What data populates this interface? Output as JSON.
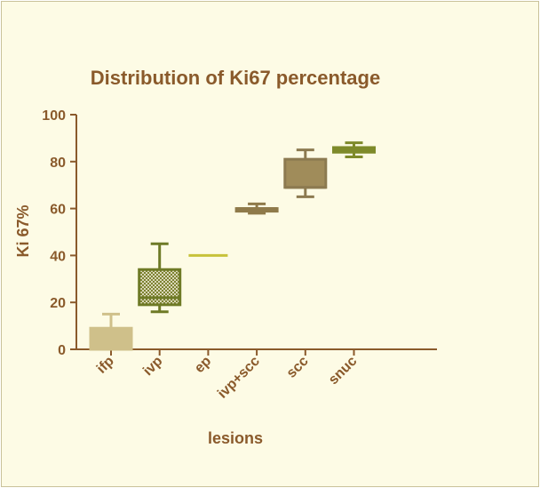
{
  "chart_data": {
    "type": "box",
    "title": "Distribution of Ki67 percentage",
    "xlabel": "lesions",
    "ylabel": "Ki 67%",
    "ylim": [
      0,
      100
    ],
    "yticks": [
      0,
      20,
      40,
      60,
      80,
      100
    ],
    "categories": [
      "ifp",
      "ivp",
      "ep",
      "ivp+scc",
      "scc",
      "snuc"
    ],
    "boxes": [
      {
        "category": "ifp",
        "min": 0,
        "q1": 0,
        "median": 0,
        "q3": 9,
        "max": 15,
        "fill": "#cfc08a",
        "stroke": "#cfc08a",
        "pattern": "solid"
      },
      {
        "category": "ivp",
        "min": 16,
        "q1": 19,
        "median": 22,
        "q3": 34,
        "max": 45,
        "fill": "#8a8f3a",
        "stroke": "#6e7a26",
        "pattern": "checker"
      },
      {
        "category": "ep",
        "min": 40,
        "q1": 40,
        "median": 40,
        "q3": 40,
        "max": 40,
        "fill": "#c7c23a",
        "stroke": "#c7c23a",
        "pattern": "line"
      },
      {
        "category": "ivp+scc",
        "min": 58,
        "q1": 59,
        "median": 60,
        "q3": 60,
        "max": 62,
        "fill": "#8f7a4a",
        "stroke": "#8f7a4a",
        "pattern": "solid"
      },
      {
        "category": "scc",
        "min": 65,
        "q1": 69,
        "median": 69,
        "q3": 81,
        "max": 85,
        "fill": "#a08c5a",
        "stroke": "#8c7a50",
        "pattern": "solid"
      },
      {
        "category": "snuc",
        "min": 82,
        "q1": 84,
        "median": 85,
        "q3": 86,
        "max": 88,
        "fill": "#7e8a2a",
        "stroke": "#7e8a2a",
        "pattern": "solid"
      }
    ],
    "grid": false,
    "legend": "none"
  }
}
